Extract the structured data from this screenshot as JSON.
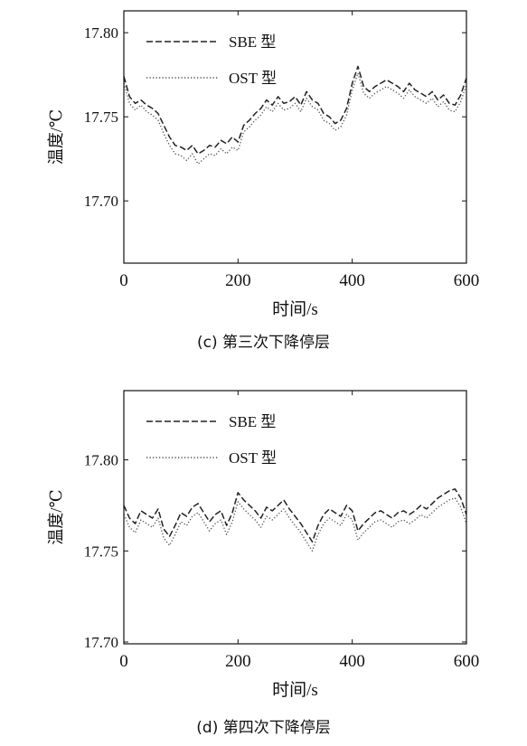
{
  "figure": {
    "panels": [
      {
        "caption": "(c)  第三次下降停层"
      },
      {
        "caption": "(d)  第四次下降停层"
      }
    ]
  },
  "chart_data": [
    {
      "type": "line",
      "title": "",
      "xlabel": "时间/s",
      "ylabel": "温度/℃",
      "xlim": [
        0,
        600
      ],
      "ylim": [
        17.663,
        17.813
      ],
      "xticks": [
        0,
        200,
        400,
        600
      ],
      "yticks": [
        17.7,
        17.75,
        17.8
      ],
      "ytick_labels": [
        "17.70",
        "17.75",
        "17.80"
      ],
      "grid": false,
      "legend_position": "top-left",
      "series": [
        {
          "name": "SBE 型",
          "style": "dashed",
          "color": "#222222",
          "x": [
            0,
            10,
            20,
            30,
            40,
            50,
            60,
            70,
            80,
            90,
            100,
            110,
            120,
            130,
            140,
            150,
            160,
            170,
            180,
            190,
            200,
            210,
            220,
            230,
            240,
            250,
            260,
            270,
            280,
            290,
            300,
            310,
            320,
            330,
            340,
            350,
            360,
            370,
            380,
            390,
            400,
            410,
            420,
            430,
            440,
            450,
            460,
            470,
            480,
            490,
            500,
            510,
            520,
            530,
            540,
            550,
            560,
            570,
            580,
            590,
            600
          ],
          "y": [
            17.774,
            17.762,
            17.758,
            17.76,
            17.757,
            17.755,
            17.752,
            17.745,
            17.738,
            17.733,
            17.732,
            17.73,
            17.733,
            17.728,
            17.73,
            17.733,
            17.732,
            17.736,
            17.734,
            17.738,
            17.735,
            17.745,
            17.748,
            17.752,
            17.755,
            17.76,
            17.757,
            17.762,
            17.758,
            17.759,
            17.762,
            17.757,
            17.765,
            17.76,
            17.758,
            17.752,
            17.75,
            17.746,
            17.748,
            17.755,
            17.77,
            17.78,
            17.768,
            17.765,
            17.768,
            17.77,
            17.772,
            17.77,
            17.768,
            17.765,
            17.77,
            17.766,
            17.764,
            17.762,
            17.765,
            17.76,
            17.763,
            17.758,
            17.757,
            17.763,
            17.773
          ]
        },
        {
          "name": "OST 型",
          "style": "dotted",
          "color": "#555555",
          "x": [
            0,
            10,
            20,
            30,
            40,
            50,
            60,
            70,
            80,
            90,
            100,
            110,
            120,
            130,
            140,
            150,
            160,
            170,
            180,
            190,
            200,
            210,
            220,
            230,
            240,
            250,
            260,
            270,
            280,
            290,
            300,
            310,
            320,
            330,
            340,
            350,
            360,
            370,
            380,
            390,
            400,
            410,
            420,
            430,
            440,
            450,
            460,
            470,
            480,
            490,
            500,
            510,
            520,
            530,
            540,
            550,
            560,
            570,
            580,
            590,
            600
          ],
          "y": [
            17.77,
            17.758,
            17.754,
            17.757,
            17.753,
            17.751,
            17.748,
            17.74,
            17.733,
            17.728,
            17.727,
            17.724,
            17.728,
            17.722,
            17.725,
            17.728,
            17.727,
            17.731,
            17.728,
            17.732,
            17.73,
            17.741,
            17.744,
            17.748,
            17.751,
            17.756,
            17.753,
            17.758,
            17.754,
            17.755,
            17.758,
            17.753,
            17.761,
            17.756,
            17.754,
            17.748,
            17.746,
            17.742,
            17.744,
            17.751,
            17.766,
            17.776,
            17.764,
            17.761,
            17.764,
            17.766,
            17.768,
            17.766,
            17.764,
            17.761,
            17.766,
            17.762,
            17.76,
            17.758,
            17.761,
            17.756,
            17.759,
            17.754,
            17.753,
            17.759,
            17.769
          ]
        }
      ]
    },
    {
      "type": "line",
      "title": "",
      "xlabel": "时间/s",
      "ylabel": "温度/℃",
      "xlim": [
        0,
        600
      ],
      "ylim": [
        17.699,
        17.838
      ],
      "xticks": [
        0,
        200,
        400,
        600
      ],
      "yticks": [
        17.7,
        17.75,
        17.8
      ],
      "ytick_labels": [
        "17.70",
        "17.75",
        "17.80"
      ],
      "grid": false,
      "legend_position": "top-left",
      "series": [
        {
          "name": "SBE 型",
          "style": "dashed",
          "color": "#222222",
          "x": [
            0,
            10,
            20,
            30,
            40,
            50,
            60,
            70,
            80,
            90,
            100,
            110,
            120,
            130,
            140,
            150,
            160,
            170,
            180,
            190,
            200,
            210,
            220,
            230,
            240,
            250,
            260,
            270,
            280,
            290,
            300,
            310,
            320,
            330,
            340,
            350,
            360,
            370,
            380,
            390,
            400,
            410,
            420,
            430,
            440,
            450,
            460,
            470,
            480,
            490,
            500,
            510,
            520,
            530,
            540,
            550,
            560,
            570,
            580,
            590,
            600
          ],
          "y": [
            17.775,
            17.768,
            17.765,
            17.772,
            17.77,
            17.768,
            17.773,
            17.762,
            17.758,
            17.764,
            17.771,
            17.769,
            17.774,
            17.776,
            17.771,
            17.766,
            17.77,
            17.772,
            17.764,
            17.771,
            17.782,
            17.778,
            17.775,
            17.772,
            17.768,
            17.774,
            17.772,
            17.775,
            17.778,
            17.773,
            17.769,
            17.765,
            17.76,
            17.755,
            17.764,
            17.77,
            17.773,
            17.771,
            17.769,
            17.775,
            17.772,
            17.761,
            17.765,
            17.768,
            17.771,
            17.772,
            17.77,
            17.768,
            17.771,
            17.772,
            17.77,
            17.772,
            17.775,
            17.773,
            17.776,
            17.779,
            17.781,
            17.783,
            17.784,
            17.779,
            17.77
          ]
        },
        {
          "name": "OST 型",
          "style": "dotted",
          "color": "#555555",
          "x": [
            0,
            10,
            20,
            30,
            40,
            50,
            60,
            70,
            80,
            90,
            100,
            110,
            120,
            130,
            140,
            150,
            160,
            170,
            180,
            190,
            200,
            210,
            220,
            230,
            240,
            250,
            260,
            270,
            280,
            290,
            300,
            310,
            320,
            330,
            340,
            350,
            360,
            370,
            380,
            390,
            400,
            410,
            420,
            430,
            440,
            450,
            460,
            470,
            480,
            490,
            500,
            510,
            520,
            530,
            540,
            550,
            560,
            570,
            580,
            590,
            600
          ],
          "y": [
            17.77,
            17.763,
            17.76,
            17.767,
            17.765,
            17.763,
            17.768,
            17.757,
            17.753,
            17.759,
            17.766,
            17.764,
            17.769,
            17.771,
            17.766,
            17.761,
            17.765,
            17.767,
            17.759,
            17.766,
            17.777,
            17.773,
            17.77,
            17.767,
            17.763,
            17.769,
            17.767,
            17.77,
            17.773,
            17.768,
            17.764,
            17.76,
            17.755,
            17.75,
            17.759,
            17.765,
            17.768,
            17.766,
            17.764,
            17.77,
            17.767,
            17.756,
            17.76,
            17.763,
            17.766,
            17.767,
            17.765,
            17.763,
            17.766,
            17.767,
            17.765,
            17.767,
            17.77,
            17.768,
            17.771,
            17.774,
            17.776,
            17.778,
            17.779,
            17.774,
            17.765
          ]
        }
      ]
    }
  ]
}
